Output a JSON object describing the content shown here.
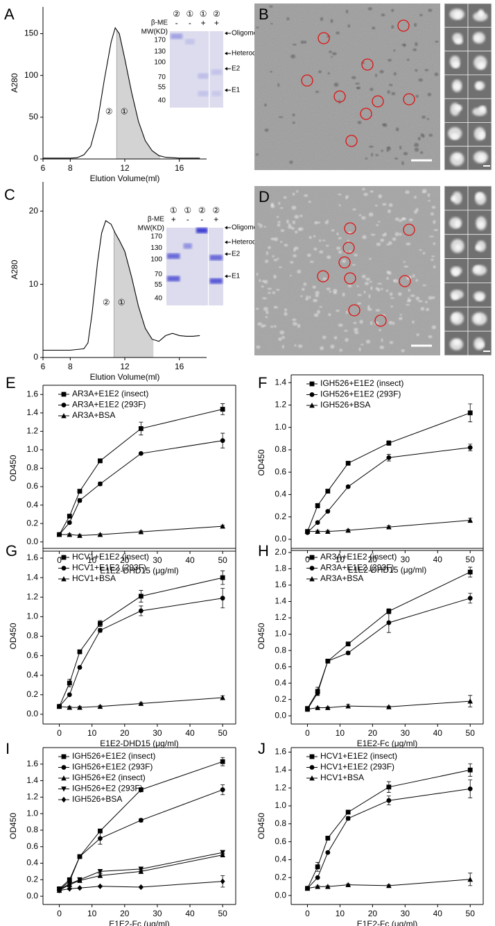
{
  "chart_data": [
    {
      "type": "area",
      "panel": "A",
      "x_label": "Elution Volume(ml)",
      "y_label": "A280",
      "x": [
        6,
        7,
        8,
        8.5,
        9,
        9.5,
        10,
        10.5,
        11,
        11.3,
        11.6,
        12,
        12.5,
        13,
        13.5,
        14,
        14.5,
        15,
        16,
        17,
        17.5
      ],
      "values": [
        1,
        1,
        1,
        1.5,
        5,
        15,
        45,
        95,
        140,
        157,
        150,
        120,
        80,
        45,
        22,
        10,
        4,
        2,
        1,
        1,
        1
      ],
      "shaded_range": [
        11.4,
        14.6
      ],
      "fraction_labels": [
        "②",
        "①"
      ],
      "color": "#000000",
      "shade_color": "#d3d3d3",
      "xlim": [
        6,
        18
      ],
      "xticks": [
        6,
        8,
        12,
        16
      ],
      "ylim": [
        0,
        182
      ],
      "yticks": [
        0,
        50,
        100,
        150
      ],
      "gel": {
        "lanes": [
          "②",
          "①",
          "①",
          "②"
        ],
        "reducing": [
          "-",
          "-",
          "+",
          "+"
        ],
        "reducing_label": "β-ME",
        "mw_label": "MW(KD)",
        "mw_markers": [
          170,
          130,
          100,
          70,
          55,
          40
        ],
        "bands": [
          "Oligomer",
          "Heterodimer",
          "E2",
          "E1"
        ]
      }
    },
    {
      "type": "area",
      "panel": "C",
      "x_label": "Elution Volume(ml)",
      "y_label": "A280",
      "x": [
        6,
        7,
        8,
        9,
        9.3,
        9.6,
        10,
        10.3,
        10.6,
        11,
        11.3,
        11.6,
        12,
        12.5,
        13,
        13.5,
        14,
        14.5,
        15,
        15.5,
        16,
        16.5,
        17,
        17.5
      ],
      "values": [
        1,
        1,
        1,
        1.2,
        2,
        6,
        13,
        17,
        18.7,
        18.2,
        17,
        16,
        14.5,
        11,
        7,
        4,
        2.5,
        2.2,
        3,
        3.3,
        3,
        2.9,
        2.9,
        3
      ],
      "shaded_range": [
        11.2,
        14.1
      ],
      "fraction_labels": [
        "②",
        "①"
      ],
      "color": "#000000",
      "shade_color": "#d3d3d3",
      "xlim": [
        6,
        18
      ],
      "xticks": [
        6,
        8,
        12,
        16
      ],
      "ylim": [
        0,
        24
      ],
      "yticks": [
        0,
        10,
        20
      ],
      "gel": {
        "lanes": [
          "①",
          "①",
          "②",
          "②"
        ],
        "reducing": [
          "+",
          "-",
          "-",
          "+"
        ],
        "reducing_label": "β-ME",
        "mw_label": "MW(KD)",
        "mw_markers": [
          170,
          130,
          100,
          70,
          55,
          40
        ],
        "bands": [
          "Oligomer",
          "Heterodimer",
          "E2",
          "E1"
        ]
      }
    },
    {
      "type": "line",
      "panel": "E",
      "x_label": "E1E2-DHD15 (μg/ml)",
      "y_label": "OD450",
      "x": [
        0,
        3.125,
        6.25,
        12.5,
        25,
        50
      ],
      "xlim": [
        -5,
        54
      ],
      "xticks": [
        0,
        10,
        20,
        30,
        40,
        50
      ],
      "ylim": [
        -0.1,
        1.7
      ],
      "yticks": [
        {
          "value": 0,
          "label": "0.0"
        },
        0.2,
        0.4,
        0.6,
        0.8,
        {
          "value": 1,
          "label": "1.0"
        },
        1.2,
        1.4,
        1.6
      ],
      "series": [
        {
          "name": "AR3A+E1E2 (insect)",
          "marker": "square",
          "color": "#000000",
          "values": [
            0.08,
            0.28,
            0.55,
            0.88,
            1.23,
            1.44
          ],
          "errors": [
            0.01,
            0.02,
            0.02,
            0.02,
            0.07,
            0.06
          ]
        },
        {
          "name": "AR3A+E1E2 (293F)",
          "marker": "circle",
          "color": "#000000",
          "values": [
            0.08,
            0.21,
            0.45,
            0.63,
            0.96,
            1.1
          ],
          "errors": [
            0.01,
            0.01,
            0.02,
            0.02,
            0.01,
            0.08
          ]
        },
        {
          "name": "AR3A+BSA",
          "marker": "triangle",
          "color": "#000000",
          "values": [
            0.08,
            0.08,
            0.07,
            0.08,
            0.11,
            0.17
          ],
          "errors": [
            0.01,
            0.01,
            0.01,
            0.01,
            0.01,
            0.01
          ]
        }
      ]
    },
    {
      "type": "line",
      "panel": "F",
      "x_label": "E1E2-DHD15 (μg/ml)",
      "y_label": "OD450",
      "x": [
        0,
        3.125,
        6.25,
        12.5,
        25,
        50
      ],
      "xlim": [
        -5,
        54
      ],
      "xticks": [
        0,
        10,
        20,
        30,
        40,
        50
      ],
      "ylim": [
        -0.1,
        1.47
      ],
      "yticks": [
        {
          "value": 0,
          "label": "0.0"
        },
        0.2,
        0.4,
        0.6,
        0.8,
        {
          "value": 1,
          "label": "1.0"
        },
        1.2,
        1.4
      ],
      "series": [
        {
          "name": "IGH526+E1E2 (insect)",
          "marker": "square",
          "color": "#000000",
          "values": [
            0.07,
            0.3,
            0.43,
            0.68,
            0.86,
            1.13
          ],
          "errors": [
            0.01,
            0.02,
            0.01,
            0.01,
            0.02,
            0.08
          ]
        },
        {
          "name": "IGH526+E1E2 (293F)",
          "marker": "circle",
          "color": "#000000",
          "values": [
            0.06,
            0.15,
            0.25,
            0.47,
            0.73,
            0.82
          ],
          "errors": [
            0.01,
            0.01,
            0.01,
            0.01,
            0.03,
            0.03
          ]
        },
        {
          "name": "IGH526+BSA",
          "marker": "triangle",
          "color": "#000000",
          "values": [
            0.07,
            0.07,
            0.07,
            0.08,
            0.11,
            0.17
          ],
          "errors": [
            0.01,
            0.01,
            0.01,
            0.01,
            0.01,
            0.02
          ]
        }
      ]
    },
    {
      "type": "line",
      "panel": "G",
      "x_label": "E1E2-DHD15 (μg/ml)",
      "y_label": "OD450",
      "x": [
        0,
        3.125,
        6.25,
        12.5,
        25,
        50
      ],
      "xlim": [
        -5,
        54
      ],
      "xticks": [
        0,
        10,
        20,
        30,
        40,
        50
      ],
      "ylim": [
        -0.1,
        1.7
      ],
      "yticks": [
        {
          "value": 0,
          "label": "0.0"
        },
        0.2,
        0.4,
        0.6,
        0.8,
        {
          "value": 1,
          "label": "1.0"
        },
        1.2,
        1.4,
        1.6
      ],
      "series": [
        {
          "name": "HCV1+E1E2 (insect)",
          "marker": "square",
          "color": "#000000",
          "values": [
            0.08,
            0.32,
            0.64,
            0.93,
            1.21,
            1.4
          ],
          "errors": [
            0.01,
            0.04,
            0.01,
            0.03,
            0.06,
            0.07
          ]
        },
        {
          "name": "HCV1+E1E2 (293F)",
          "marker": "circle",
          "color": "#000000",
          "values": [
            0.08,
            0.2,
            0.48,
            0.86,
            1.06,
            1.19
          ],
          "errors": [
            0.01,
            0.01,
            0.01,
            0.02,
            0.05,
            0.1
          ]
        },
        {
          "name": "HCV1+BSA",
          "marker": "triangle",
          "color": "#000000",
          "values": [
            0.08,
            0.07,
            0.07,
            0.08,
            0.11,
            0.17
          ],
          "errors": [
            0.01,
            0.01,
            0.01,
            0.01,
            0.01,
            0.02
          ]
        }
      ]
    },
    {
      "type": "line",
      "panel": "H",
      "x_label": "E1E2-Fc (μg/ml)",
      "y_label": "OD450",
      "x": [
        0,
        3.125,
        6.25,
        12.5,
        25,
        50
      ],
      "xlim": [
        -5,
        54
      ],
      "xticks": [
        0,
        10,
        20,
        30,
        40,
        50
      ],
      "ylim": [
        -0.1,
        2.05
      ],
      "yticks": [
        {
          "value": 0,
          "label": "0.0"
        },
        0.2,
        0.4,
        0.6,
        0.8,
        {
          "value": 1,
          "label": "1.0"
        },
        1.2,
        1.4,
        1.6,
        1.8,
        {
          "value": 2,
          "label": "2.0"
        }
      ],
      "series": [
        {
          "name": "AR3A+E1E2 (insect)",
          "marker": "square",
          "color": "#000000",
          "values": [
            0.09,
            0.3,
            0.67,
            0.88,
            1.28,
            1.76
          ],
          "errors": [
            0.01,
            0.05,
            0.02,
            0.02,
            0.03,
            0.06
          ]
        },
        {
          "name": "AR3A+E1E2 (293F)",
          "marker": "circle",
          "color": "#000000",
          "values": [
            0.08,
            0.28,
            0.67,
            0.77,
            1.14,
            1.44
          ],
          "errors": [
            0.01,
            0.03,
            0.02,
            0.02,
            0.12,
            0.06
          ]
        },
        {
          "name": "AR3A+BSA",
          "marker": "triangle",
          "color": "#000000",
          "values": [
            0.08,
            0.1,
            0.1,
            0.12,
            0.11,
            0.18
          ],
          "errors": [
            0.01,
            0.01,
            0.01,
            0.02,
            0.01,
            0.07
          ]
        }
      ]
    },
    {
      "type": "line",
      "panel": "I",
      "x_label": "E1E2-Fc (μg/ml)",
      "y_label": "OD450",
      "x": [
        0,
        3.125,
        6.25,
        12.5,
        25,
        50
      ],
      "xlim": [
        -5,
        54
      ],
      "xticks": [
        0,
        10,
        20,
        30,
        40,
        50
      ],
      "ylim": [
        -0.1,
        1.8
      ],
      "yticks": [
        {
          "value": 0,
          "label": "0.0"
        },
        0.2,
        0.4,
        0.6,
        0.8,
        {
          "value": 1,
          "label": "1.0"
        },
        1.2,
        1.4,
        1.6
      ],
      "series": [
        {
          "name": "IGH526+E1E2 (insect)",
          "marker": "square",
          "color": "#000000",
          "values": [
            0.09,
            0.2,
            0.48,
            0.79,
            1.29,
            1.63
          ],
          "errors": [
            0.01,
            0.02,
            0.02,
            0.02,
            0.02,
            0.05
          ]
        },
        {
          "name": "IGH526+E1E2 (293F)",
          "marker": "circle",
          "color": "#000000",
          "values": [
            0.08,
            0.18,
            0.48,
            0.7,
            0.92,
            1.29
          ],
          "errors": [
            0.01,
            0.02,
            0.02,
            0.07,
            0.02,
            0.06
          ]
        },
        {
          "name": "IGH526+E2 (insect)",
          "marker": "triangle",
          "color": "#000000",
          "values": [
            0.07,
            0.14,
            0.19,
            0.25,
            0.3,
            0.5
          ],
          "errors": [
            0.01,
            0.01,
            0.01,
            0.02,
            0.02,
            0.02
          ]
        },
        {
          "name": "IGH526+E2 (293F)",
          "marker": "triangle-down",
          "color": "#000000",
          "values": [
            0.08,
            0.15,
            0.2,
            0.3,
            0.33,
            0.53
          ],
          "errors": [
            0.01,
            0.01,
            0.01,
            0.02,
            0.02,
            0.02
          ]
        },
        {
          "name": "IGH526+BSA",
          "marker": "diamond",
          "color": "#000000",
          "values": [
            0.07,
            0.09,
            0.1,
            0.12,
            0.11,
            0.18
          ],
          "errors": [
            0.01,
            0.01,
            0.01,
            0.01,
            0.01,
            0.07
          ]
        }
      ]
    },
    {
      "type": "line",
      "panel": "J",
      "x_label": "E1E2-Fc (μg/ml)",
      "y_label": "OD450",
      "x": [
        0,
        3.125,
        6.25,
        12.5,
        25,
        50
      ],
      "xlim": [
        -5,
        54
      ],
      "xticks": [
        0,
        10,
        20,
        30,
        40,
        50
      ],
      "ylim": [
        -0.1,
        1.65
      ],
      "yticks": [
        {
          "value": 0,
          "label": "0.0"
        },
        0.2,
        0.4,
        0.6,
        0.8,
        {
          "value": 1,
          "label": "1.0"
        },
        1.2,
        1.4,
        1.6
      ],
      "series": [
        {
          "name": "HCV1+E1E2 (insect)",
          "marker": "square",
          "color": "#000000",
          "values": [
            0.08,
            0.32,
            0.64,
            0.93,
            1.21,
            1.4
          ],
          "errors": [
            0.01,
            0.05,
            0.01,
            0.02,
            0.06,
            0.07
          ]
        },
        {
          "name": "HCV1+E1E2 (293F)",
          "marker": "circle",
          "color": "#000000",
          "values": [
            0.08,
            0.2,
            0.48,
            0.86,
            1.06,
            1.19
          ],
          "errors": [
            0.01,
            0.01,
            0.01,
            0.02,
            0.05,
            0.1
          ]
        },
        {
          "name": "HCV1+BSA",
          "marker": "triangle",
          "color": "#000000",
          "values": [
            0.08,
            0.1,
            0.1,
            0.12,
            0.11,
            0.18
          ],
          "errors": [
            0.01,
            0.01,
            0.01,
            0.01,
            0.01,
            0.07
          ]
        }
      ]
    }
  ],
  "images": [
    {
      "panel": "B"
    },
    {
      "panel": "D"
    }
  ]
}
